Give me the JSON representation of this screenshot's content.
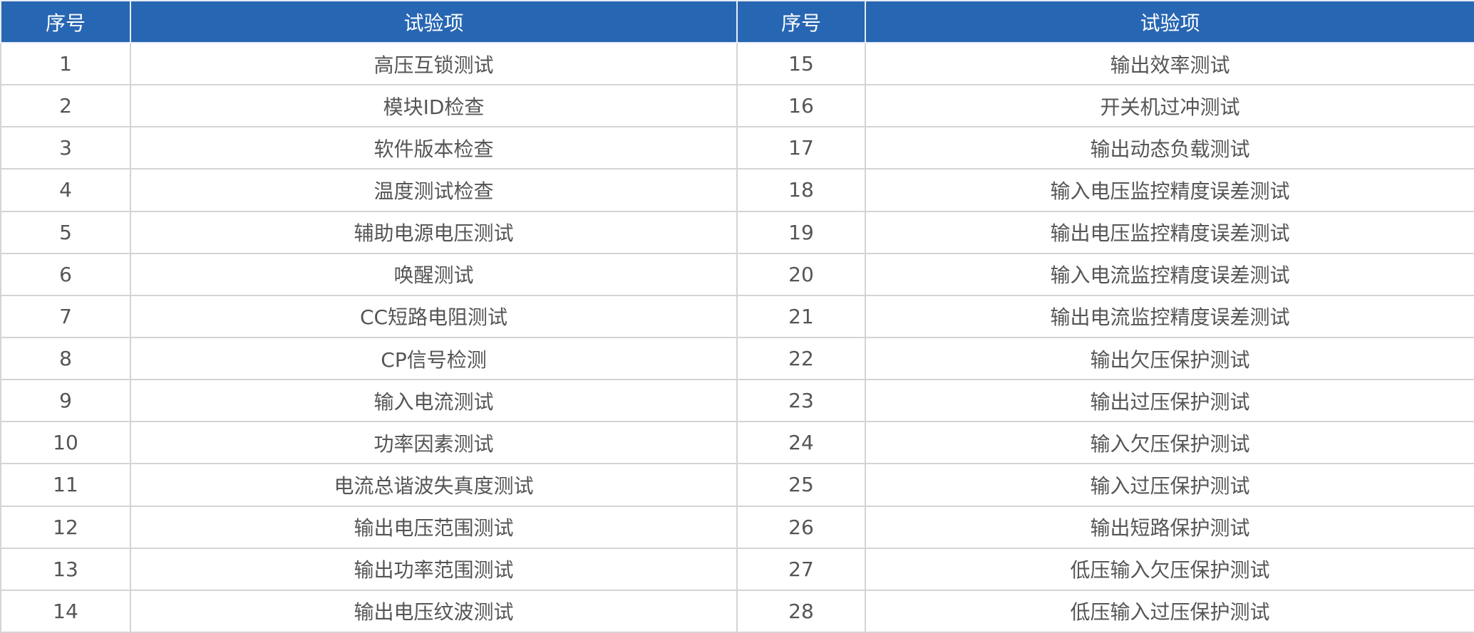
{
  "table": {
    "header": [
      "序号",
      "试验项",
      "序号",
      "试验项"
    ],
    "rows": [
      [
        1,
        "高压互锁测试",
        15,
        "输出效率测试"
      ],
      [
        2,
        "模块ID检查",
        16,
        "开关机过冲测试"
      ],
      [
        3,
        "软件版本检查",
        17,
        "输出动态负载测试"
      ],
      [
        4,
        "温度测试检查",
        18,
        "输入电压监控精度误差测试"
      ],
      [
        5,
        "辅助电源电压测试",
        19,
        "输出电压监控精度误差测试"
      ],
      [
        6,
        "唤醒测试",
        20,
        "输入电流监控精度误差测试"
      ],
      [
        7,
        "CC短路电阻测试",
        21,
        "输出电流监控精度误差测试"
      ],
      [
        8,
        "CP信号检测",
        22,
        "输出欠压保护测试"
      ],
      [
        9,
        "输入电流测试",
        23,
        "输出过压保护测试"
      ],
      [
        10,
        "功率因素测试",
        24,
        "输入欠压保护测试"
      ],
      [
        11,
        "电流总谐波失真度测试",
        25,
        "输入过压保护测试"
      ],
      [
        12,
        "输出电压范围测试",
        26,
        "输出短路保护测试"
      ],
      [
        13,
        "输出功率范围测试",
        27,
        "低压输入欠压保护测试"
      ],
      [
        14,
        "输出电压纹波测试",
        28,
        "低压输入过压保护测试"
      ]
    ]
  }
}
